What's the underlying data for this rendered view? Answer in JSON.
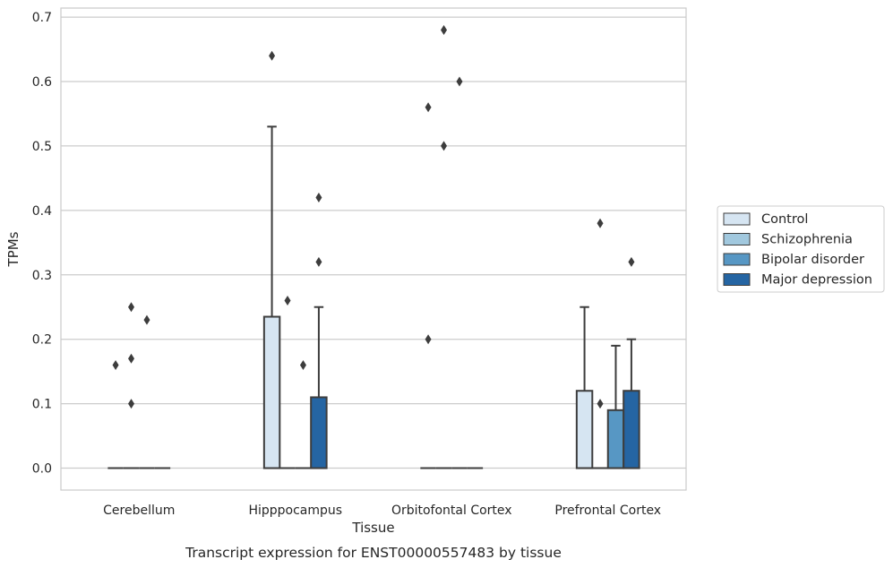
{
  "chart_data": {
    "type": "box",
    "title": "",
    "caption": "Transcript expression for ENST00000557483 by tissue",
    "xlabel": "Tissue",
    "ylabel": "TPMs",
    "ylim": [
      -0.034,
      0.714
    ],
    "yticks": [
      0.0,
      0.1,
      0.2,
      0.3,
      0.4,
      0.5,
      0.6,
      0.7
    ],
    "ytick_labels": [
      "0.0",
      "0.1",
      "0.2",
      "0.3",
      "0.4",
      "0.5",
      "0.6",
      "0.7"
    ],
    "grid": "horizontal",
    "legend_position": "right",
    "categories": [
      "Cerebellum",
      "Hipppocampus",
      "Orbitofontal Cortex",
      "Prefrontal Cortex"
    ],
    "series": [
      {
        "name": "Control",
        "color": "#d6e5f2",
        "boxes": [
          {
            "q1": 0,
            "median": 0,
            "q3": 0,
            "whislo": 0,
            "whishi": 0,
            "fliers": [
              0.16
            ]
          },
          {
            "q1": 0,
            "median": 0,
            "q3": 0.235,
            "whislo": 0,
            "whishi": 0.53,
            "fliers": [
              0.64
            ]
          },
          {
            "q1": 0,
            "median": 0,
            "q3": 0,
            "whislo": 0,
            "whishi": 0,
            "fliers": [
              0.2,
              0.56
            ]
          },
          {
            "q1": 0,
            "median": 0,
            "q3": 0.12,
            "whislo": 0,
            "whishi": 0.25,
            "fliers": []
          }
        ]
      },
      {
        "name": "Schizophrenia",
        "color": "#a1c8de",
        "boxes": [
          {
            "q1": 0,
            "median": 0,
            "q3": 0,
            "whislo": 0,
            "whishi": 0,
            "fliers": [
              0.25,
              0.17,
              0.1
            ]
          },
          {
            "q1": 0,
            "median": 0,
            "q3": 0,
            "whislo": 0,
            "whishi": 0,
            "fliers": [
              0.26
            ]
          },
          {
            "q1": 0,
            "median": 0,
            "q3": 0,
            "whislo": 0,
            "whishi": 0,
            "fliers": [
              0.68,
              0.5
            ]
          },
          {
            "q1": 0,
            "median": 0,
            "q3": 0,
            "whislo": 0,
            "whishi": 0,
            "fliers": [
              0.38,
              0.1
            ]
          }
        ]
      },
      {
        "name": "Bipolar disorder",
        "color": "#5797c4",
        "boxes": [
          {
            "q1": 0,
            "median": 0,
            "q3": 0,
            "whislo": 0,
            "whishi": 0,
            "fliers": [
              0.23
            ]
          },
          {
            "q1": 0,
            "median": 0,
            "q3": 0,
            "whislo": 0,
            "whishi": 0,
            "fliers": [
              0.16
            ]
          },
          {
            "q1": 0,
            "median": 0,
            "q3": 0,
            "whislo": 0,
            "whishi": 0,
            "fliers": [
              0.6
            ]
          },
          {
            "q1": 0,
            "median": 0,
            "q3": 0.09,
            "whislo": 0,
            "whishi": 0.19,
            "fliers": []
          }
        ]
      },
      {
        "name": "Major depression",
        "color": "#2565a3",
        "boxes": [
          {
            "q1": 0,
            "median": 0,
            "q3": 0,
            "whislo": 0,
            "whishi": 0,
            "fliers": []
          },
          {
            "q1": 0,
            "median": 0,
            "q3": 0.11,
            "whislo": 0,
            "whishi": 0.25,
            "fliers": [
              0.32,
              0.42
            ]
          },
          {
            "q1": 0,
            "median": 0,
            "q3": 0,
            "whislo": 0,
            "whishi": 0,
            "fliers": []
          },
          {
            "q1": 0,
            "median": 0,
            "q3": 0.12,
            "whislo": 0,
            "whishi": 0.2,
            "fliers": [
              0.32
            ]
          }
        ]
      }
    ]
  }
}
